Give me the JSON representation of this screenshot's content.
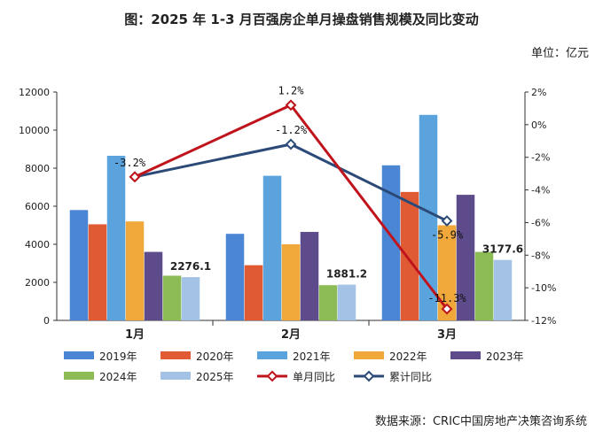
{
  "chart_data": {
    "type": "bar",
    "title": "图：2025 年 1-3 月百强房企单月操盘销售规模及同比变动",
    "unit_label": "单位：亿元",
    "source": "数据来源：CRIC中国房地产决策咨询系统",
    "categories": [
      "1月",
      "2月",
      "3月"
    ],
    "ylim": [
      0,
      12000
    ],
    "yticks": [
      0,
      2000,
      4000,
      6000,
      8000,
      10000,
      12000
    ],
    "y2lim": [
      -12,
      2
    ],
    "y2ticks": [
      -12,
      -10,
      -8,
      -6,
      -4,
      -2,
      0,
      2
    ],
    "y2tick_labels": [
      "-12%",
      "-10%",
      "-8%",
      "-6%",
      "-4%",
      "-2%",
      "0%",
      "2%"
    ],
    "series": [
      {
        "name": "2019年",
        "color": "#4a86d4",
        "values": [
          5800,
          4550,
          8150
        ]
      },
      {
        "name": "2020年",
        "color": "#e05a33",
        "values": [
          5050,
          2900,
          6750
        ]
      },
      {
        "name": "2021年",
        "color": "#5ba3dc",
        "values": [
          8650,
          7600,
          10800
        ]
      },
      {
        "name": "2022年",
        "color": "#f0a83a",
        "values": [
          5200,
          4000,
          5000
        ]
      },
      {
        "name": "2023年",
        "color": "#5e4b8c",
        "values": [
          3600,
          4650,
          6600
        ]
      },
      {
        "name": "2024年",
        "color": "#8dbb56",
        "values": [
          2350,
          1850,
          3600
        ]
      },
      {
        "name": "2025年",
        "color": "#a4c2e6",
        "values": [
          2276.1,
          1881.2,
          3177.6
        ]
      }
    ],
    "value_labels": [
      "2276.1",
      "1881.2",
      "3177.6"
    ],
    "lines": [
      {
        "name": "单月同比",
        "color": "#c0141c",
        "values": [
          -3.2,
          1.2,
          -11.3
        ],
        "labels": [
          "",
          "1.2%",
          "-11.3%"
        ]
      },
      {
        "name": "累计同比",
        "color": "#2b4a78",
        "values": [
          -3.2,
          -1.2,
          -5.9
        ],
        "labels": [
          "-3.2%",
          "-1.2%",
          "-5.9%"
        ]
      }
    ]
  }
}
